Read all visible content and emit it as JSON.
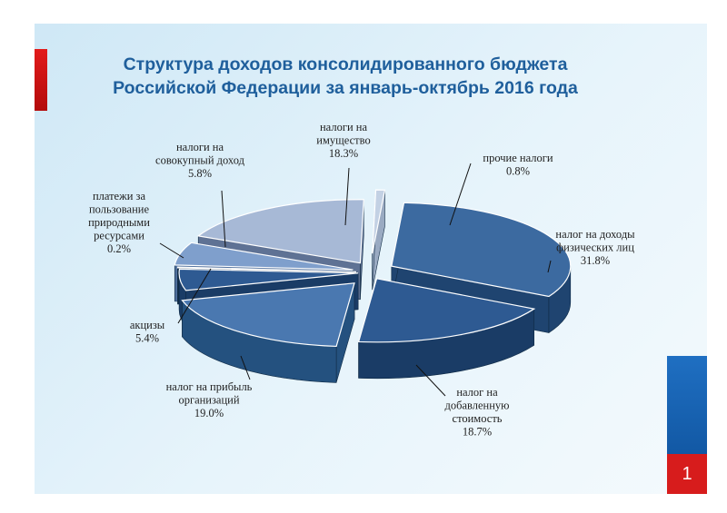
{
  "slide": {
    "title_line1": "Структура доходов консолидированного бюджета",
    "title_line2": "Российской Федерации за январь-октябрь 2016 года",
    "page_number": "1",
    "colors": {
      "accent": "#d71c1c",
      "title": "#1f5f9c",
      "strip": "#1463b0"
    }
  },
  "chart_data": {
    "type": "pie",
    "style": "3d-exploded",
    "title": "Структура доходов консолидированного бюджета Российской Федерации за январь-октябрь 2016 года",
    "slices": [
      {
        "name": "налог на доходы физических лиц",
        "label_lines": [
          "налог на доходы",
          "физических лиц"
        ],
        "value_label": "31.8%",
        "value": 31.8
      },
      {
        "name": "налог на добавленную стоимость",
        "label_lines": [
          "налог на",
          "добавленную",
          "стоимость"
        ],
        "value_label": "18.7%",
        "value": 18.7
      },
      {
        "name": "налог на прибыль организаций",
        "label_lines": [
          "налог на прибыль",
          "организаций"
        ],
        "value_label": "19.0%",
        "value": 19.0
      },
      {
        "name": "акцизы",
        "label_lines": [
          "акцизы"
        ],
        "value_label": "5.4%",
        "value": 5.4
      },
      {
        "name": "платежи за пользование природными ресурсами",
        "label_lines": [
          "платежи за",
          "пользование",
          "природными",
          "ресурсами"
        ],
        "value_label": "0.2%",
        "value": 0.2
      },
      {
        "name": "налоги на совокупный доход",
        "label_lines": [
          "налоги на",
          "совокупный доход"
        ],
        "value_label": "5.8%",
        "value": 5.8
      },
      {
        "name": "налоги на имущество",
        "label_lines": [
          "налоги на",
          "имущество"
        ],
        "value_label": "18.3%",
        "value": 18.3
      },
      {
        "name": "прочие налоги",
        "label_lines": [
          "прочие налоги"
        ],
        "value_label": "0.8%",
        "value": 0.8
      }
    ]
  }
}
